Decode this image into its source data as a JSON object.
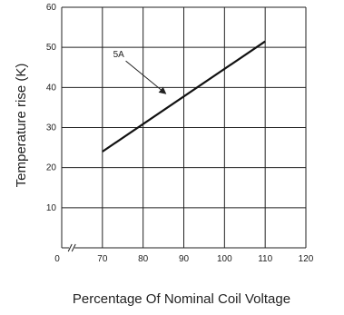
{
  "chart_data": {
    "type": "line",
    "xlabel": "Percentage Of Nominal Coil Voltage",
    "ylabel": "Temperature rise (K)",
    "xlim": [
      0,
      120
    ],
    "ylim": [
      0,
      60
    ],
    "x_ticks": [
      0,
      70,
      80,
      90,
      100,
      110,
      120
    ],
    "y_ticks": [
      10,
      20,
      30,
      40,
      50,
      60
    ],
    "x_axis_break": true,
    "grid": true,
    "legend": "none",
    "series": [
      {
        "name": "5A",
        "x": [
          70,
          110
        ],
        "y": [
          24,
          51.5
        ]
      }
    ],
    "annotations": [
      {
        "text": "5A",
        "points_to": [
          86,
          38
        ]
      }
    ],
    "colors": {
      "line": "#111111",
      "grid": "#222222",
      "text": "#222222"
    }
  }
}
